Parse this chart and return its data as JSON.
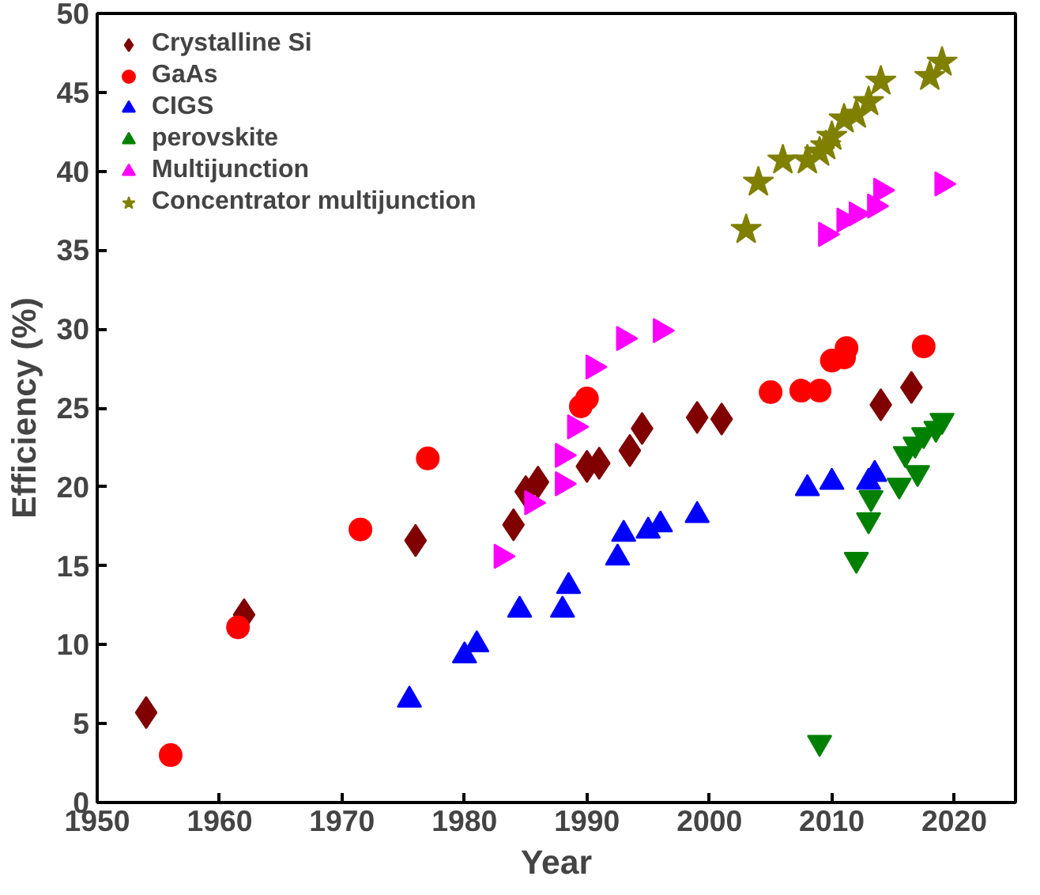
{
  "chart_data": {
    "type": "scatter",
    "xlabel": "Year",
    "ylabel": "Efficiency (%)",
    "xlim": [
      1950,
      2025
    ],
    "ylim": [
      0,
      50
    ],
    "xticks": [
      1950,
      1960,
      1970,
      1980,
      1990,
      2000,
      2010,
      2020
    ],
    "yticks": [
      0,
      5,
      10,
      15,
      20,
      25,
      30,
      35,
      40,
      45,
      50
    ],
    "grid": false,
    "legend": "top left",
    "series": [
      {
        "name": "Crystalline Si",
        "color": "#800000",
        "marker": "diamond",
        "x": [
          1954,
          1962,
          1976,
          1984,
          1985,
          1986,
          1990,
          1991,
          1993.5,
          1994.5,
          1999,
          2001,
          2014,
          2016.5
        ],
        "values": [
          5.7,
          11.9,
          16.6,
          17.6,
          19.7,
          20.3,
          21.3,
          21.5,
          22.3,
          23.7,
          24.4,
          24.3,
          25.2,
          26.3
        ]
      },
      {
        "name": "GaAs",
        "color": "#ff0000",
        "marker": "circle",
        "x": [
          1956,
          1961.5,
          1971.5,
          1977,
          1989.5,
          1990,
          2005,
          2007.5,
          2009,
          2010,
          2011,
          2011.2,
          2017.5
        ],
        "values": [
          3,
          11.1,
          17.3,
          21.8,
          25.1,
          25.6,
          26,
          26.1,
          26.1,
          28,
          28.2,
          28.8,
          28.9
        ]
      },
      {
        "name": "CIGS",
        "color": "#0000ff",
        "marker": "triangle",
        "x": [
          1975.5,
          1980,
          1981,
          1984.5,
          1988,
          1988.5,
          1992.5,
          1993,
          1995,
          1996,
          1999,
          2008,
          2010,
          2013,
          2013.5
        ],
        "values": [
          6.5,
          9.3,
          10,
          12.2,
          12.2,
          13.7,
          15.5,
          17,
          17.2,
          17.6,
          18.2,
          19.9,
          20.3,
          20.3,
          20.8
        ]
      },
      {
        "name": "perovskite",
        "color": "#008000",
        "marker": "triangle",
        "x": [
          2009,
          2012,
          2013,
          2013.2,
          2015.5,
          2016,
          2017,
          2016.8,
          2017.5,
          2018.5,
          2019
        ],
        "values": [
          3.8,
          15.4,
          17.9,
          19.3,
          20.1,
          22.1,
          20.9,
          22.7,
          23.3,
          23.7,
          24.2
        ]
      },
      {
        "name": "Multijunction",
        "color": "#ff00ff",
        "marker": "triangle",
        "x": [
          1983,
          1985.5,
          1988,
          1988,
          1989,
          1990.5,
          1993,
          1996,
          2009.5,
          2011,
          2012,
          2013.5,
          2014,
          2019
        ],
        "values": [
          15.6,
          19.0,
          20.2,
          22,
          23.8,
          27.6,
          29.4,
          29.9,
          36.0,
          36.9,
          37.3,
          37.8,
          38.8,
          39.2
        ]
      },
      {
        "name": "Concentrator multijunction",
        "color": "#808000",
        "marker": "star",
        "x": [
          2003,
          2004,
          2006,
          2008,
          2009,
          2009.5,
          2010,
          2011,
          2012,
          2013,
          2014,
          2018,
          2019
        ],
        "values": [
          36.3,
          39.3,
          40.7,
          40.7,
          41.2,
          41.6,
          42.2,
          43.3,
          43.6,
          44.4,
          45.7,
          46.0,
          46.9
        ]
      }
    ]
  }
}
